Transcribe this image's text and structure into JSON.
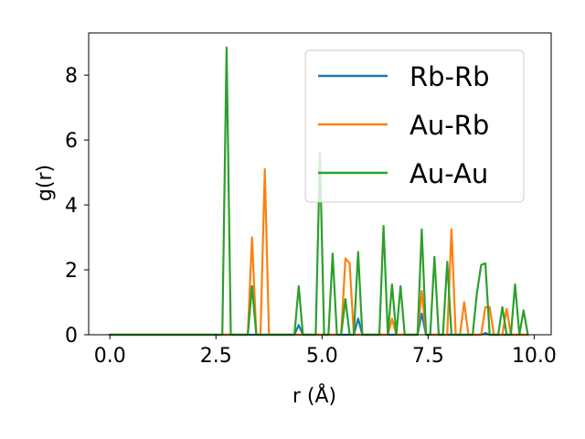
{
  "chart_data": {
    "type": "line",
    "title": "",
    "xlabel": "r (Å)",
    "ylabel": "g(r)",
    "xlim": [
      -0.5,
      10.4
    ],
    "ylim": [
      0,
      9.3
    ],
    "xticks": [
      0.0,
      2.5,
      5.0,
      7.5,
      10.0
    ],
    "xtick_labels": [
      "0.0",
      "2.5",
      "5.0",
      "7.5",
      "10.0"
    ],
    "yticks": [
      0,
      2,
      4,
      6,
      8
    ],
    "ytick_labels": [
      "0",
      "2",
      "4",
      "6",
      "8"
    ],
    "grid": false,
    "legend_position": "top-right",
    "x": [
      0.0,
      2.65,
      2.75,
      2.85,
      2.95,
      3.05,
      3.25,
      3.35,
      3.45,
      3.55,
      3.65,
      3.75,
      3.85,
      4.35,
      4.45,
      4.55,
      4.85,
      4.95,
      5.05,
      5.15,
      5.25,
      5.35,
      5.45,
      5.55,
      5.65,
      5.75,
      5.85,
      5.95,
      6.05,
      6.35,
      6.45,
      6.55,
      6.65,
      6.75,
      6.85,
      6.95,
      7.25,
      7.35,
      7.45,
      7.55,
      7.65,
      7.75,
      7.85,
      7.95,
      8.05,
      8.15,
      8.25,
      8.35,
      8.45,
      8.55,
      8.65,
      8.75,
      8.85,
      8.95,
      9.05,
      9.15,
      9.25,
      9.35,
      9.45,
      9.55,
      9.65,
      9.75,
      9.85
    ],
    "series": [
      {
        "name": "Rb-Rb",
        "color": "#1f77b4",
        "values": [
          0,
          0,
          0,
          0,
          0,
          0,
          0,
          0,
          0,
          0,
          0,
          0,
          0,
          0,
          0.3,
          0,
          0,
          0,
          0,
          0,
          0,
          0,
          0,
          0,
          0,
          0,
          0.5,
          0,
          0,
          0,
          0,
          0,
          0,
          0,
          0,
          0,
          0,
          0.65,
          0,
          0,
          0,
          0,
          0,
          0,
          0,
          0,
          0,
          0,
          0,
          0,
          0,
          0,
          0.05,
          0,
          0,
          0,
          0,
          0,
          0,
          0,
          0,
          0,
          0
        ]
      },
      {
        "name": "Au-Rb",
        "color": "#ff7f0e",
        "values": [
          0,
          0,
          0,
          0,
          0,
          0,
          0,
          3.0,
          0,
          0,
          5.1,
          0,
          0,
          0,
          0,
          0,
          0,
          0,
          0,
          0,
          0,
          0,
          0,
          2.35,
          2.2,
          0,
          0,
          0,
          0,
          0,
          0,
          0,
          0.5,
          0,
          0,
          0,
          0,
          1.35,
          0,
          0,
          0,
          0,
          0,
          0,
          3.25,
          0,
          0,
          1.0,
          0,
          0,
          0,
          0,
          0.85,
          0.85,
          0,
          0,
          0,
          0.8,
          0,
          0,
          0,
          0,
          0
        ]
      },
      {
        "name": "Au-Au",
        "color": "#2ca02c",
        "values": [
          0,
          0,
          8.85,
          0,
          0,
          0,
          0,
          1.5,
          0,
          0,
          0,
          0,
          0,
          0,
          1.5,
          0,
          0,
          5.6,
          0,
          0,
          2.5,
          0,
          0,
          1.1,
          0,
          0,
          2.55,
          0,
          0,
          0,
          3.35,
          0,
          1.55,
          0,
          1.5,
          0,
          0,
          3.25,
          0,
          0,
          2.4,
          0,
          0,
          2.25,
          0,
          0,
          0,
          0,
          0,
          0,
          1.3,
          2.15,
          2.2,
          0,
          0,
          0,
          0.85,
          0,
          0,
          1.55,
          0,
          0.75,
          0
        ]
      }
    ]
  }
}
